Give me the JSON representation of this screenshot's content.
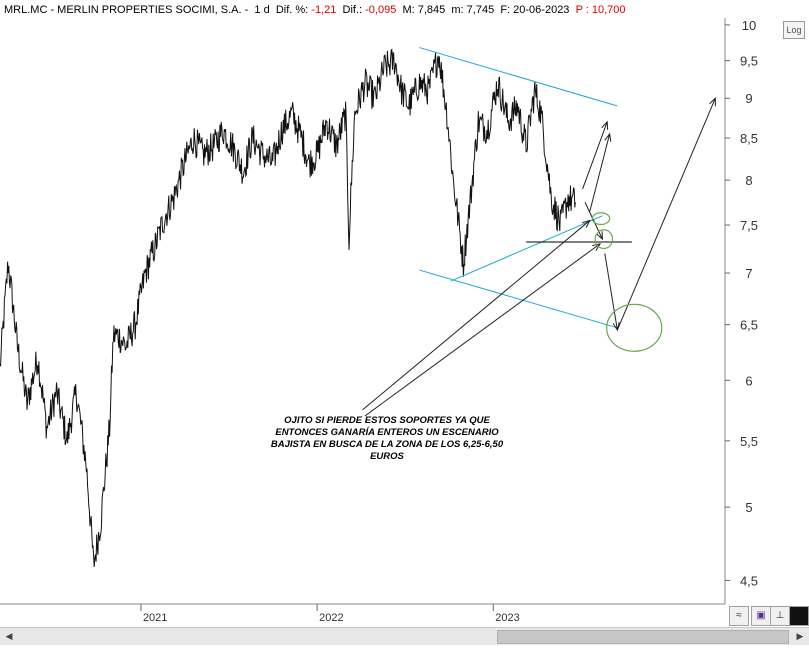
{
  "header": {
    "ticker": "MRL.MC - MERLIN PROPERTIES SOCIMI, S.A. -",
    "period": "1 d",
    "dif_pct_label": "Dif. %:",
    "dif_pct_value": "-1,21",
    "dif_label": "Dif.:",
    "dif_value": "-0,095",
    "max_label": "M: 7,845",
    "min_label": "m: 7,745",
    "date_label": "F: 20-06-2023",
    "price_label": "P : 10,700"
  },
  "log_button": "Log",
  "annotation": "OJITO SI PIERDE ESTOS SOPORTES YA QUE ENTONCES GANARÍA ENTEROS UN ESCENARIO BAJISTA EN BUSCA DE LA ZONA DE LOS 6,25-6,50 EUROS",
  "chart_data": {
    "type": "line",
    "y_scale": "log",
    "ylim": [
      4.35,
      10.1
    ],
    "y_ticks": [
      "10",
      "9,5",
      "9",
      "8,5",
      "8",
      "7,5",
      "7",
      "6,5",
      "6",
      "5,5",
      "5",
      "4,5"
    ],
    "y_tick_values": [
      10,
      9.5,
      9,
      8.5,
      8,
      7.5,
      7,
      6.5,
      6,
      5.5,
      5,
      4.5
    ],
    "x_ticks": [
      "2021",
      "2022",
      "2023"
    ],
    "x_tick_dates": [
      "2021-01-01",
      "2022-01-01",
      "2023-01-01"
    ],
    "xlim": [
      "2020-03-15",
      "2024-04-25"
    ],
    "price_series": {
      "dates": [
        "2020-03-15",
        "2020-04-01",
        "2020-04-20",
        "2020-05-10",
        "2020-06-01",
        "2020-06-20",
        "2020-07-10",
        "2020-08-01",
        "2020-08-20",
        "2020-09-10",
        "2020-09-25",
        "2020-10-10",
        "2020-10-28",
        "2020-11-05",
        "2020-11-15",
        "2020-12-01",
        "2020-12-20",
        "2021-01-10",
        "2021-02-01",
        "2021-02-20",
        "2021-03-10",
        "2021-04-01",
        "2021-04-20",
        "2021-05-10",
        "2021-06-01",
        "2021-06-20",
        "2021-07-10",
        "2021-08-01",
        "2021-08-20",
        "2021-09-10",
        "2021-10-01",
        "2021-10-20",
        "2021-11-10",
        "2021-11-30",
        "2021-12-15",
        "2022-01-01",
        "2022-01-20",
        "2022-02-10",
        "2022-03-01",
        "2022-03-08",
        "2022-03-20",
        "2022-04-10",
        "2022-05-01",
        "2022-05-20",
        "2022-06-10",
        "2022-06-25",
        "2022-07-10",
        "2022-08-01",
        "2022-08-20",
        "2022-09-10",
        "2022-09-27",
        "2022-10-10",
        "2022-10-31",
        "2022-11-15",
        "2022-12-01",
        "2022-12-20",
        "2023-01-10",
        "2023-02-01",
        "2023-02-20",
        "2023-03-10",
        "2023-03-28",
        "2023-04-10",
        "2023-05-01",
        "2023-05-20",
        "2023-06-05",
        "2023-06-20"
      ],
      "values": [
        6.1,
        7.1,
        6.3,
        5.8,
        6.2,
        5.6,
        5.9,
        5.5,
        5.9,
        5.3,
        4.6,
        4.9,
        5.6,
        6.4,
        6.4,
        6.3,
        6.5,
        7.0,
        7.3,
        7.6,
        7.8,
        8.2,
        8.5,
        8.3,
        8.4,
        8.6,
        8.4,
        8.1,
        8.5,
        8.3,
        8.2,
        8.6,
        8.8,
        8.5,
        8.2,
        8.3,
        8.7,
        8.4,
        8.8,
        7.35,
        8.8,
        9.2,
        9.0,
        9.4,
        9.5,
        9.1,
        8.9,
        9.2,
        9.1,
        9.6,
        8.8,
        8.0,
        7.1,
        7.8,
        8.7,
        8.6,
        9.2,
        8.7,
        8.9,
        8.4,
        9.1,
        8.8,
        7.8,
        7.5,
        7.8,
        7.75
      ]
    },
    "lines": [
      {
        "name": "upper channel",
        "color": "#1aa8d8",
        "from": [
          "2022-08-01",
          9.68
        ],
        "to": [
          "2023-09-15",
          8.9
        ]
      },
      {
        "name": "lower channel",
        "color": "#1aa8d8",
        "from": [
          "2022-08-01",
          7.03
        ],
        "to": [
          "2023-09-15",
          6.47
        ]
      },
      {
        "name": "rising trendline",
        "color": "#1aa8d8",
        "from": [
          "2022-10-05",
          6.92
        ],
        "to": [
          "2023-08-15",
          7.6
        ]
      },
      {
        "name": "support",
        "color": "#000000",
        "from": [
          "2023-03-10",
          7.32
        ],
        "to": [
          "2023-10-15",
          7.32
        ]
      }
    ],
    "arrows": [
      {
        "from": [
          "2023-07-05",
          7.9
        ],
        "to": [
          "2023-08-25",
          8.7
        ]
      },
      {
        "from": [
          "2023-07-20",
          7.65
        ],
        "to": [
          "2023-08-30",
          8.55
        ]
      },
      {
        "from": [
          "2023-07-10",
          7.75
        ],
        "to": [
          "2023-08-15",
          7.35
        ]
      },
      {
        "from": [
          "2023-08-20",
          7.2
        ],
        "to": [
          "2023-09-15",
          6.45
        ]
      },
      {
        "from": [
          "2023-09-15",
          6.45
        ],
        "to": [
          "2024-04-05",
          9.0
        ]
      },
      {
        "from": [
          "2022-04-05",
          5.75
        ],
        "to": [
          "2023-07-20",
          7.55
        ]
      },
      {
        "from": [
          "2022-04-10",
          5.7
        ],
        "to": [
          "2023-08-10",
          7.3
        ]
      }
    ],
    "circles": [
      {
        "center": [
          "2023-08-12",
          7.57
        ],
        "rx": 0.012,
        "ry": 0.01
      },
      {
        "center": [
          "2023-08-18",
          7.35
        ],
        "rx": 0.012,
        "ry": 0.016
      },
      {
        "center": [
          "2023-10-20",
          6.47
        ],
        "rx": 0.038,
        "ry": 0.04
      }
    ],
    "circle_color": "#6aa84f"
  }
}
